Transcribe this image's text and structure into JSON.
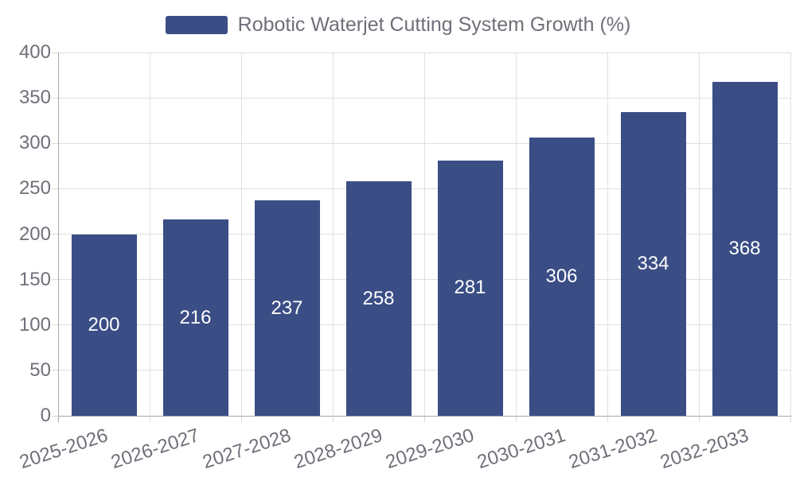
{
  "legend": {
    "label": "Robotic Waterjet Cutting System Growth (%)"
  },
  "colors": {
    "bar": "#3A4D85",
    "grid": "#E0E0E0",
    "axis": "#A8A8A8",
    "tick": "#D8D8D8",
    "axis_label": "#6E7079",
    "legend_text": "#6E7079",
    "value_label": "#FFFFFF",
    "background": "#FFFFFF"
  },
  "chart_data": {
    "type": "bar",
    "title": "Robotic Waterjet Cutting System Growth (%)",
    "categories": [
      "2025-2026",
      "2026-2027",
      "2027-2028",
      "2028-2029",
      "2029-2030",
      "2030-2031",
      "2031-2032",
      "2032-2033"
    ],
    "values": [
      200,
      216,
      237,
      258,
      281,
      306,
      334,
      368
    ],
    "xlabel": "",
    "ylabel": "",
    "ylim": [
      0,
      400
    ],
    "ytick_step": 50,
    "ytick_labels": [
      "0",
      "50",
      "100",
      "150",
      "200",
      "250",
      "300",
      "350",
      "400"
    ],
    "grid": true,
    "grid_vertical": true,
    "legend_position": "top-center",
    "value_labels": "inside-center",
    "x_label_rotation_deg": -18
  }
}
